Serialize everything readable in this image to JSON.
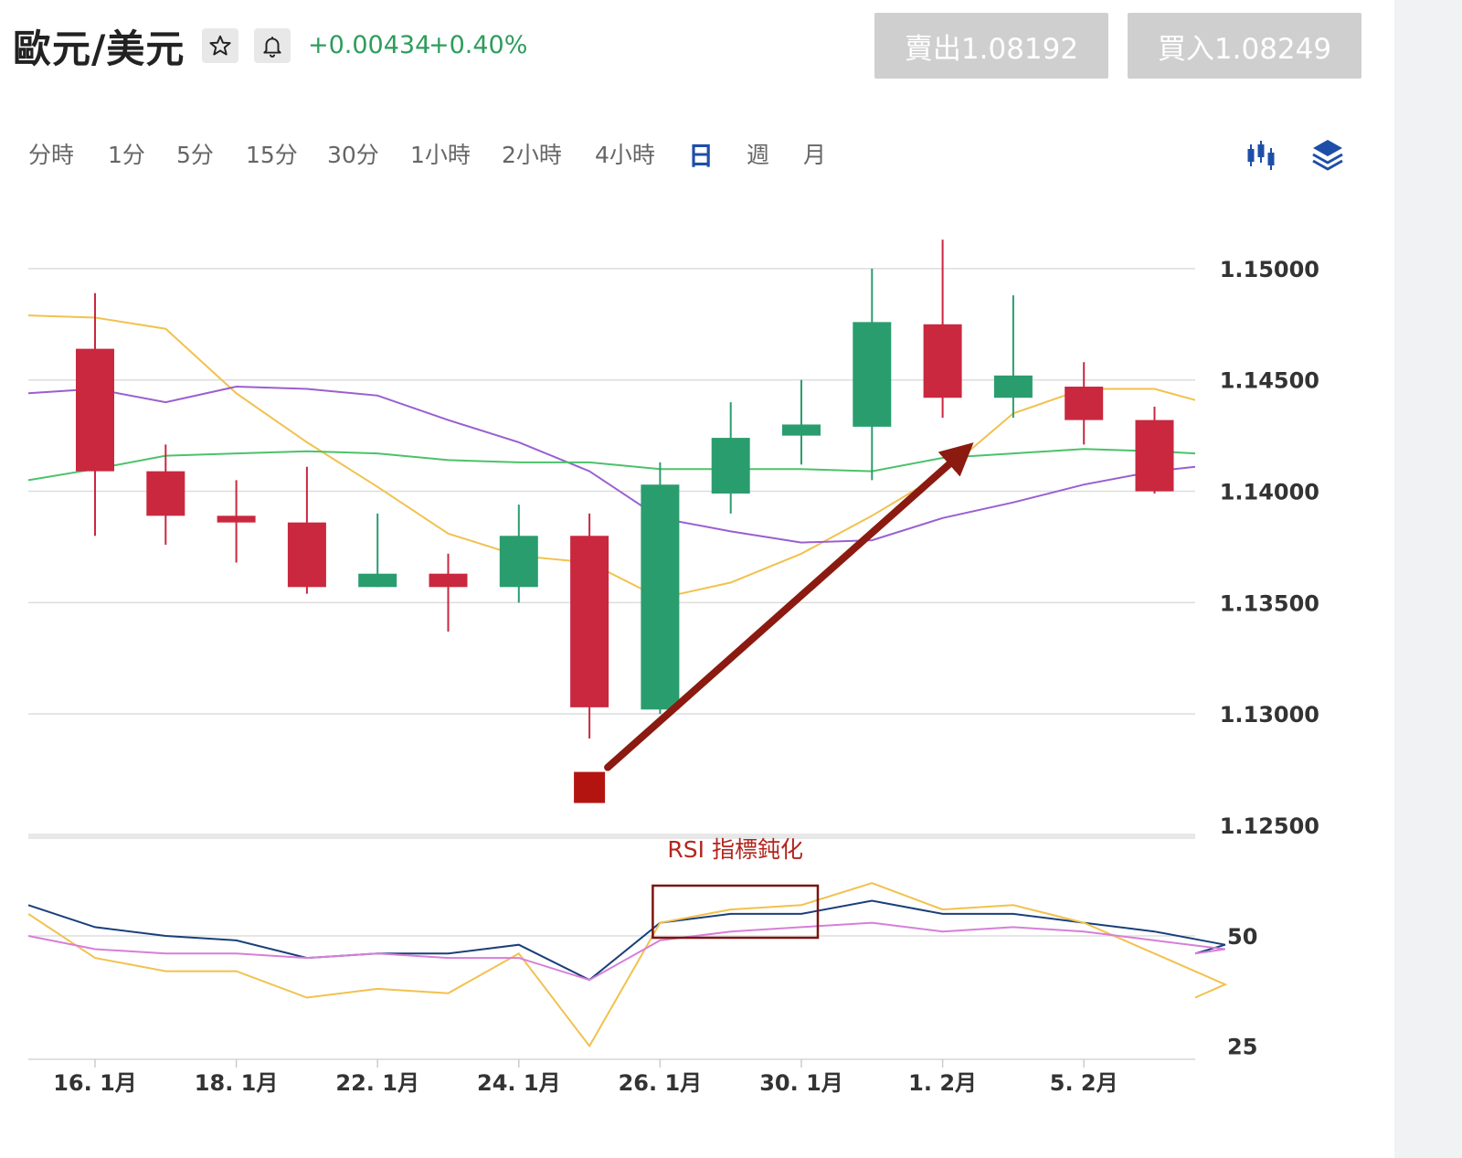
{
  "header": {
    "title": "歐元/美元",
    "change_abs": "+0.00434",
    "change_pct": "+0.40%",
    "sell_label": "賣出1.08192",
    "buy_label": "買入1.08249"
  },
  "icons": {
    "favorite": "star-icon",
    "alert": "bell-icon",
    "chart_type": "candlestick-icon",
    "indicators": "layers-icon"
  },
  "timeframes": [
    "分時",
    "1分",
    "5分",
    "15分",
    "30分",
    "1小時",
    "2小時",
    "4小時",
    "日",
    "週",
    "月"
  ],
  "active_timeframe": "日",
  "colors": {
    "up": "#2a9d6e",
    "down": "#c9283f",
    "accent": "#1e4fa8",
    "change_text": "#2e9c5c",
    "annotation": "#8b1a10"
  },
  "chart_data": {
    "type": "candlestick",
    "ylim": [
      1.125,
      1.1525
    ],
    "y_ticks": [
      "1.15000",
      "1.14500",
      "1.14000",
      "1.13500",
      "1.13000",
      "1.12500"
    ],
    "x_tick_labels": [
      "16. 1月",
      "18. 1月",
      "22. 1月",
      "24. 1月",
      "26. 1月",
      "30. 1月",
      "1. 2月",
      "5. 2月"
    ],
    "candles": [
      {
        "open": 1.1464,
        "high": 1.1489,
        "low": 1.138,
        "close": 1.1409
      },
      {
        "open": 1.1409,
        "high": 1.1421,
        "low": 1.1376,
        "close": 1.1389
      },
      {
        "open": 1.1389,
        "high": 1.1405,
        "low": 1.1368,
        "close": 1.1386
      },
      {
        "open": 1.1386,
        "high": 1.1411,
        "low": 1.1354,
        "close": 1.1357
      },
      {
        "open": 1.1357,
        "high": 1.139,
        "low": 1.1357,
        "close": 1.1363
      },
      {
        "open": 1.1363,
        "high": 1.1372,
        "low": 1.1337,
        "close": 1.1357
      },
      {
        "open": 1.1357,
        "high": 1.1394,
        "low": 1.135,
        "close": 1.138
      },
      {
        "open": 1.138,
        "high": 1.139,
        "low": 1.1289,
        "close": 1.1303
      },
      {
        "open": 1.1302,
        "high": 1.1413,
        "low": 1.13,
        "close": 1.1403
      },
      {
        "open": 1.1399,
        "high": 1.144,
        "low": 1.139,
        "close": 1.1424
      },
      {
        "open": 1.1425,
        "high": 1.145,
        "low": 1.1412,
        "close": 1.143
      },
      {
        "open": 1.1429,
        "high": 1.15,
        "low": 1.1405,
        "close": 1.1476
      },
      {
        "open": 1.1475,
        "high": 1.1513,
        "low": 1.1433,
        "close": 1.1442
      },
      {
        "open": 1.1442,
        "high": 1.1488,
        "low": 1.1433,
        "close": 1.1452
      },
      {
        "open": 1.1447,
        "high": 1.1458,
        "low": 1.1421,
        "close": 1.1432
      },
      {
        "open": 1.1432,
        "high": 1.1438,
        "low": 1.1399,
        "close": 1.14
      }
    ],
    "moving_averages": [
      {
        "color": "#f2c14e",
        "values": [
          1.1479,
          1.1478,
          1.1473,
          1.1444,
          1.1422,
          1.1402,
          1.1381,
          1.1371,
          1.1368,
          1.1352,
          1.1359,
          1.1372,
          1.1389,
          1.1408,
          1.1435,
          1.1446,
          1.1446,
          1.1441
        ]
      },
      {
        "color": "#9a5fd0",
        "values": [
          1.1444,
          1.1446,
          1.144,
          1.1447,
          1.1446,
          1.1443,
          1.1432,
          1.1422,
          1.1409,
          1.1388,
          1.1382,
          1.1377,
          1.1378,
          1.1388,
          1.1395,
          1.1403,
          1.1409,
          1.1411
        ]
      },
      {
        "color": "#4cc26b",
        "values": [
          1.1405,
          1.141,
          1.1416,
          1.1417,
          1.1418,
          1.1417,
          1.1414,
          1.1413,
          1.1413,
          1.141,
          1.141,
          1.141,
          1.1409,
          1.1415,
          1.1417,
          1.1419,
          1.1418,
          1.1417
        ]
      }
    ],
    "annotation_arrow": {
      "from": {
        "index": 7,
        "price": 1.1267
      },
      "to": {
        "index": 12.3,
        "price": 1.1418
      }
    },
    "rsi": {
      "annotation": "RSI 指標鈍化",
      "ylim": [
        22,
        72
      ],
      "y_ticks": [
        "50",
        "25"
      ],
      "highlight_range": {
        "from_index": 8,
        "to_index": 10
      },
      "series": [
        {
          "color": "#1a3f7a",
          "values": [
            57,
            52,
            50,
            49,
            45,
            46,
            46,
            48,
            40,
            53,
            55,
            55,
            58,
            55,
            55,
            53,
            51,
            48,
            46
          ]
        },
        {
          "color": "#f2c14e",
          "values": [
            55,
            45,
            42,
            42,
            36,
            38,
            37,
            46,
            25,
            53,
            56,
            57,
            62,
            56,
            57,
            53,
            46,
            39,
            36
          ]
        },
        {
          "color": "#d77fd8",
          "values": [
            50,
            47,
            46,
            46,
            45,
            46,
            45,
            45,
            40,
            49,
            51,
            52,
            53,
            51,
            52,
            51,
            49,
            47,
            46
          ]
        }
      ]
    }
  }
}
